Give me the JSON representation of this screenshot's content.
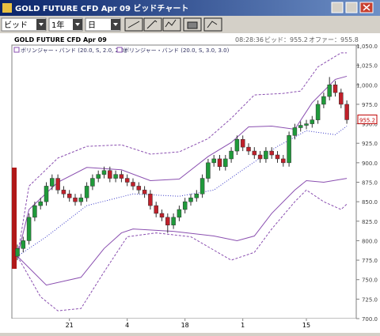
{
  "window": {
    "title": "GOLD FUTURE CFD Apr 09 ビッドチャート"
  },
  "toolbar": {
    "price_type": "ビッド",
    "period": "1年",
    "interval": "日"
  },
  "header": {
    "instrument": "GOLD FUTURE CFD Apr 09",
    "time": "08:28:36",
    "bid": "ビッド：955.2",
    "offer": "オファー：955.8"
  },
  "chart": {
    "type": "candlestick",
    "categories": [
      null,
      null,
      null,
      null,
      null,
      null,
      null,
      null,
      null,
      "21",
      null,
      null,
      null,
      null,
      null,
      null,
      null,
      null,
      null,
      "4",
      null,
      null,
      null,
      null,
      null,
      null,
      null,
      null,
      null,
      "18",
      null,
      null,
      null,
      null,
      null,
      null,
      null,
      null,
      null,
      "1",
      null,
      null,
      null,
      null,
      null,
      null,
      null,
      null,
      null,
      null,
      "15",
      null,
      null,
      null,
      null,
      null,
      null,
      null
    ],
    "open": [
      780,
      790,
      800,
      830,
      845,
      850,
      870,
      880,
      865,
      860,
      855,
      850,
      855,
      870,
      880,
      885,
      890,
      880,
      885,
      880,
      875,
      870,
      865,
      860,
      845,
      835,
      830,
      820,
      830,
      840,
      850,
      855,
      860,
      880,
      900,
      905,
      895,
      905,
      915,
      930,
      920,
      915,
      910,
      905,
      915,
      910,
      905,
      900,
      935,
      945,
      948,
      950,
      955,
      975,
      985,
      1000,
      990,
      975
    ],
    "high": [
      795,
      805,
      835,
      850,
      855,
      875,
      885,
      885,
      870,
      865,
      860,
      860,
      875,
      885,
      890,
      895,
      895,
      890,
      890,
      885,
      880,
      875,
      870,
      865,
      850,
      840,
      835,
      835,
      845,
      855,
      860,
      865,
      885,
      905,
      910,
      910,
      910,
      920,
      935,
      935,
      925,
      920,
      915,
      920,
      920,
      915,
      910,
      940,
      950,
      953,
      955,
      960,
      980,
      990,
      1010,
      1005,
      995,
      980
    ],
    "low": [
      775,
      785,
      795,
      825,
      840,
      845,
      865,
      860,
      855,
      850,
      845,
      845,
      850,
      865,
      875,
      880,
      875,
      875,
      875,
      870,
      865,
      860,
      855,
      840,
      830,
      825,
      810,
      815,
      825,
      835,
      845,
      850,
      855,
      875,
      895,
      890,
      890,
      900,
      910,
      915,
      910,
      905,
      900,
      900,
      905,
      900,
      895,
      895,
      930,
      940,
      943,
      945,
      950,
      970,
      980,
      985,
      970,
      950
    ],
    "close": [
      790,
      800,
      830,
      845,
      850,
      870,
      880,
      865,
      860,
      855,
      850,
      855,
      870,
      880,
      885,
      890,
      880,
      885,
      880,
      875,
      870,
      865,
      860,
      845,
      835,
      830,
      820,
      830,
      840,
      850,
      855,
      860,
      880,
      900,
      905,
      895,
      905,
      915,
      930,
      920,
      915,
      910,
      905,
      915,
      910,
      905,
      900,
      935,
      945,
      948,
      950,
      955,
      975,
      985,
      1000,
      990,
      975,
      955.2
    ],
    "up_color": "#1f9a3a",
    "down_color": "#c0202a",
    "bands": [
      {
        "name": "ボリンジャー・バンド (20.0, S, 2.0, 2.0)",
        "color": "#8a4fb0",
        "dash": false,
        "upper": {
          "x": [
            0,
            2,
            7,
            12,
            18,
            23,
            28,
            33,
            37,
            40,
            44,
            48,
            51,
            55,
            57
          ],
          "values": [
            780,
            840,
            875,
            894,
            891,
            877,
            879,
            908,
            926,
            946,
            947,
            943,
            977,
            1007,
            1011
          ]
        },
        "lower": {
          "x": [
            0,
            5,
            11,
            15,
            18,
            20,
            27,
            34,
            38,
            41,
            44,
            48,
            50,
            53,
            57
          ],
          "values": [
            780,
            743,
            753,
            790,
            810,
            815,
            812,
            806,
            800,
            806,
            835,
            865,
            877,
            875,
            880
          ]
        }
      },
      {
        "name": "ボリンジャー・バンド (20.0, S, 3.0, 3.0)",
        "color": "#8a4fb0",
        "dash": true,
        "upper": {
          "x": [
            0,
            2,
            7,
            12,
            18,
            23,
            28,
            33,
            37,
            41,
            46,
            49,
            52,
            56,
            57
          ],
          "values": [
            780,
            870,
            906,
            921,
            923,
            911,
            914,
            931,
            957,
            987,
            989,
            992,
            1023,
            1041,
            1041
          ]
        },
        "lower": {
          "x": [
            0,
            4,
            7,
            11,
            15,
            19,
            24,
            30,
            37,
            41,
            44,
            48,
            50,
            53,
            56,
            57
          ],
          "values": [
            780,
            728,
            710,
            713,
            760,
            805,
            810,
            805,
            775,
            785,
            815,
            850,
            865,
            850,
            840,
            847
          ]
        }
      }
    ],
    "middle": {
      "color": "#3a3ac8",
      "x": [
        0,
        5,
        12,
        20,
        28,
        34,
        39,
        45,
        50,
        55,
        57
      ],
      "values": [
        780,
        805,
        845,
        860,
        857,
        865,
        891,
        921,
        941,
        936,
        947
      ]
    },
    "ylim": [
      700,
      1050
    ],
    "yticks": [
      {
        "value": 700,
        "label": "700.0"
      },
      {
        "value": 725,
        "label": "725.0"
      },
      {
        "value": 750,
        "label": "750.0"
      },
      {
        "value": 775,
        "label": "775.0"
      },
      {
        "value": 800,
        "label": "800.0"
      },
      {
        "value": 825,
        "label": "825.0"
      },
      {
        "value": 850,
        "label": "850.0"
      },
      {
        "value": 875,
        "label": "875.0"
      },
      {
        "value": 900,
        "label": "900.0"
      },
      {
        "value": 925,
        "label": "925.0"
      },
      {
        "value": 950,
        "label": "950.0"
      },
      {
        "value": 975,
        "label": "975.0"
      },
      {
        "value": 1000,
        "label": "1,000.0"
      },
      {
        "value": 1025,
        "label": "1,025.0"
      },
      {
        "value": 1050,
        "label": "1,050.0"
      }
    ]
  }
}
